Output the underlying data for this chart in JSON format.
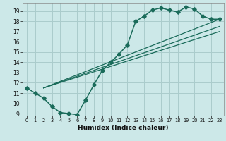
{
  "title": "",
  "xlabel": "Humidex (Indice chaleur)",
  "bg_color": "#cce8e8",
  "grid_color": "#aacccc",
  "line_color": "#1a6b5a",
  "xlim": [
    -0.5,
    23.5
  ],
  "ylim": [
    8.8,
    19.8
  ],
  "yticks": [
    9,
    10,
    11,
    12,
    13,
    14,
    15,
    16,
    17,
    18,
    19
  ],
  "xticks": [
    0,
    1,
    2,
    3,
    4,
    5,
    6,
    7,
    8,
    9,
    10,
    11,
    12,
    13,
    14,
    15,
    16,
    17,
    18,
    19,
    20,
    21,
    22,
    23
  ],
  "main_curve": {
    "x": [
      0,
      1,
      2,
      3,
      4,
      5,
      6,
      7,
      8,
      9,
      10,
      11,
      12,
      13,
      14,
      15,
      16,
      17,
      18,
      19,
      20,
      21,
      22,
      23
    ],
    "y": [
      11.5,
      11.0,
      10.5,
      9.7,
      9.1,
      9.0,
      8.9,
      10.3,
      11.8,
      13.2,
      14.0,
      14.8,
      15.7,
      18.0,
      18.5,
      19.1,
      19.3,
      19.1,
      18.9,
      19.4,
      19.2,
      18.5,
      18.2,
      18.2
    ]
  },
  "straight_lines": [
    {
      "x": [
        2,
        23
      ],
      "y": [
        11.5,
        18.2
      ]
    },
    {
      "x": [
        2,
        23
      ],
      "y": [
        11.5,
        17.5
      ]
    },
    {
      "x": [
        2,
        23
      ],
      "y": [
        11.5,
        17.0
      ]
    }
  ]
}
